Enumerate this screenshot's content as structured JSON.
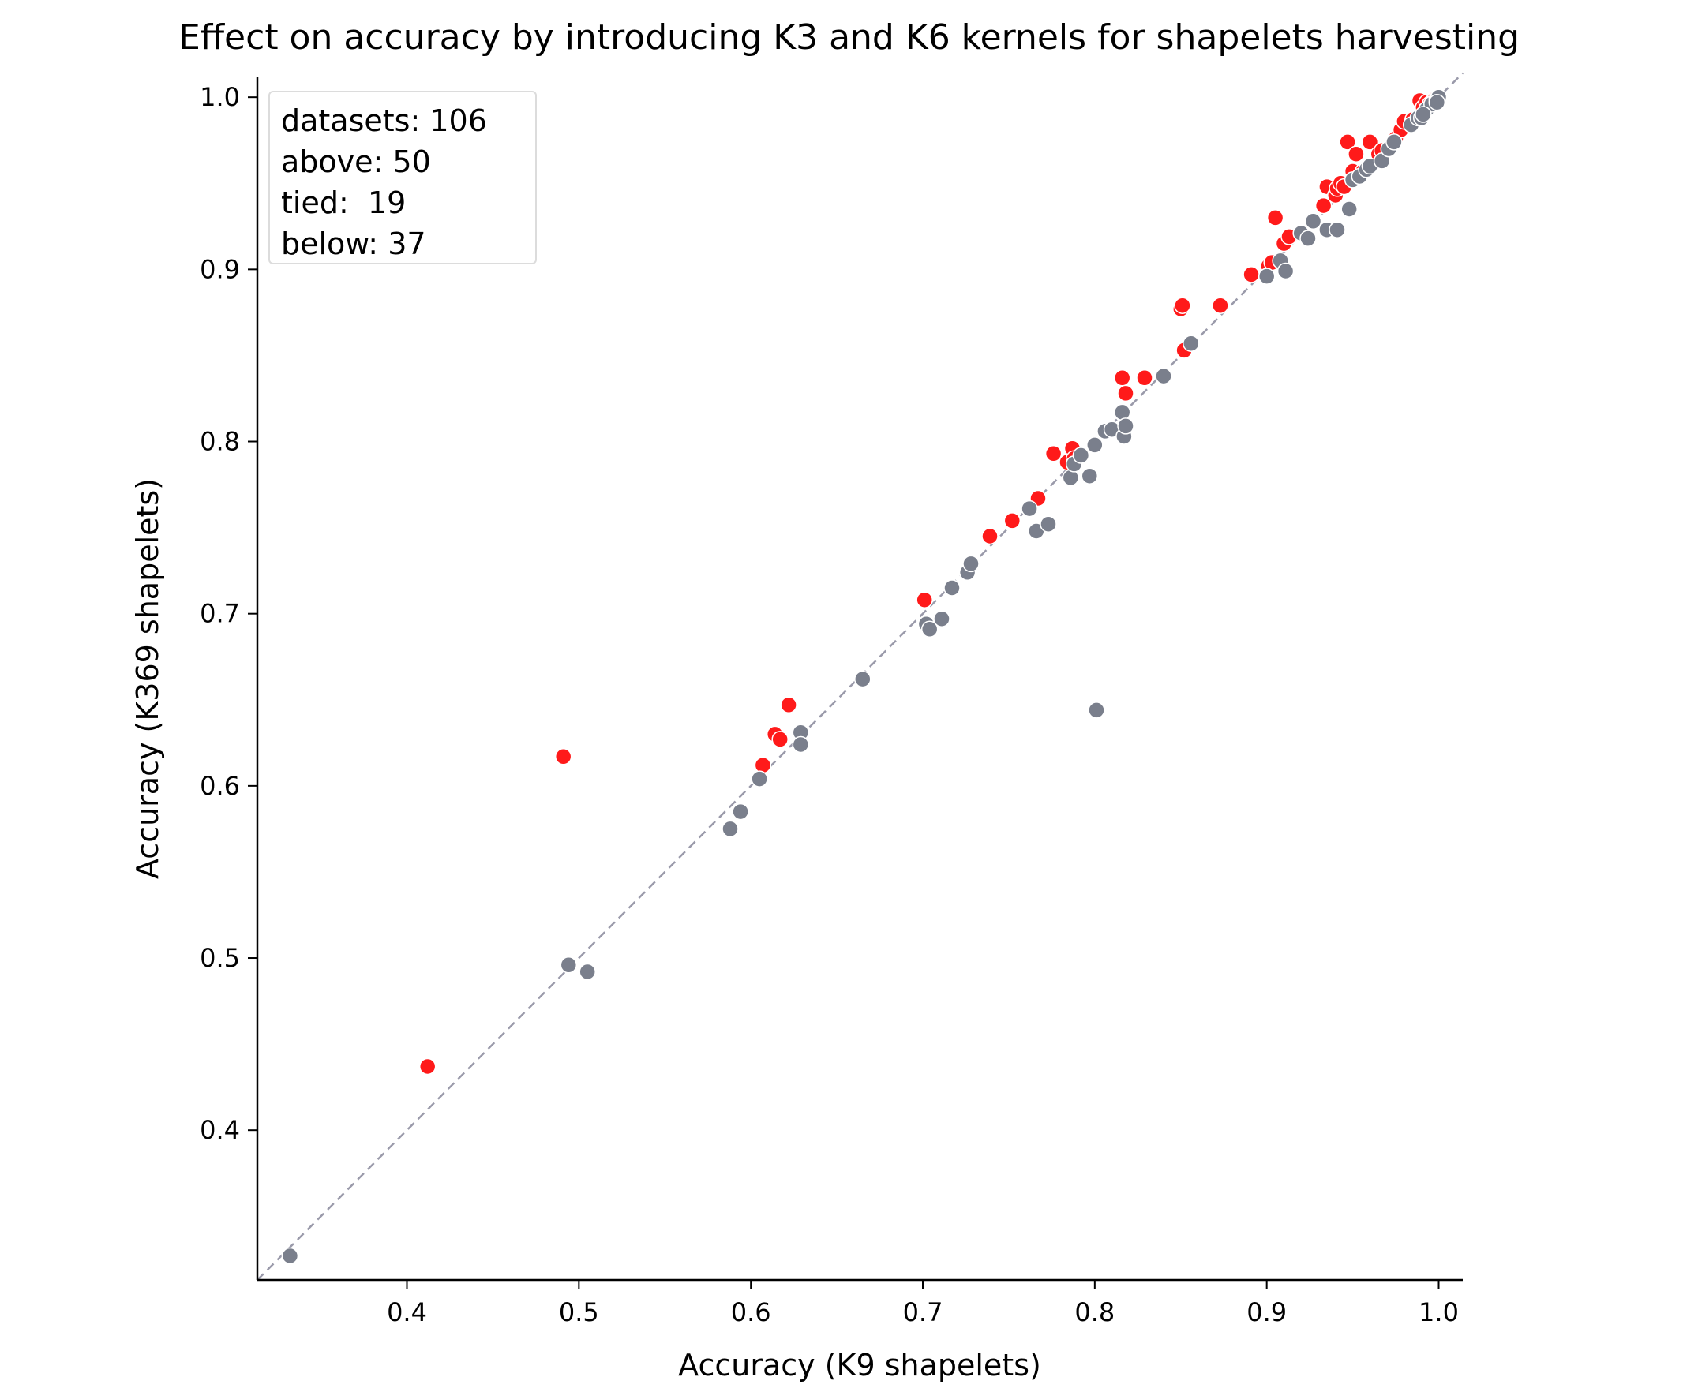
{
  "chart_data": {
    "type": "scatter",
    "title": "Effect on accuracy by introducing K3 and K6 kernels for shapelets harvesting",
    "xlabel": "Accuracy (K9 shapelets)",
    "ylabel": "Accuracy (K369 shapelets)",
    "xlim": [
      0.313,
      1.014
    ],
    "ylim": [
      0.313,
      1.012
    ],
    "xticks": [
      0.4,
      0.5,
      0.6,
      0.7,
      0.8,
      0.9,
      1.0
    ],
    "yticks": [
      0.4,
      0.5,
      0.6,
      0.7,
      0.8,
      0.9,
      1.0
    ],
    "xtick_labels": [
      "0.4",
      "0.5",
      "0.6",
      "0.7",
      "0.8",
      "0.9",
      "1.0"
    ],
    "ytick_labels": [
      "0.4",
      "0.5",
      "0.6",
      "0.7",
      "0.8",
      "0.9",
      "1.0"
    ],
    "grid": false,
    "diagonal": {
      "from": [
        0.313,
        0.313
      ],
      "to": [
        1.014,
        1.014
      ],
      "style": "dashed",
      "color": "#9a9aaa"
    },
    "colors": {
      "above": "#ff1a1a",
      "not_above": "#7a7f8c"
    },
    "stats": {
      "datasets": "datasets: 106",
      "above": "above: 50",
      "tied": "tied:  19",
      "below": "below: 37"
    },
    "series": [
      {
        "group": "above",
        "points": [
          [
            0.412,
            0.437
          ],
          [
            0.491,
            0.617
          ],
          [
            0.607,
            0.612
          ],
          [
            0.614,
            0.63
          ],
          [
            0.617,
            0.627
          ],
          [
            0.622,
            0.647
          ],
          [
            0.701,
            0.708
          ],
          [
            0.739,
            0.745
          ],
          [
            0.752,
            0.754
          ],
          [
            0.767,
            0.767
          ],
          [
            0.776,
            0.793
          ],
          [
            0.784,
            0.788
          ],
          [
            0.787,
            0.796
          ],
          [
            0.788,
            0.79
          ],
          [
            0.816,
            0.837
          ],
          [
            0.818,
            0.828
          ],
          [
            0.829,
            0.837
          ],
          [
            0.85,
            0.877
          ],
          [
            0.851,
            0.879
          ],
          [
            0.852,
            0.853
          ],
          [
            0.873,
            0.879
          ],
          [
            0.891,
            0.897
          ],
          [
            0.901,
            0.902
          ],
          [
            0.903,
            0.904
          ],
          [
            0.905,
            0.93
          ],
          [
            0.91,
            0.915
          ],
          [
            0.913,
            0.919
          ],
          [
            0.933,
            0.937
          ],
          [
            0.935,
            0.948
          ],
          [
            0.94,
            0.943
          ],
          [
            0.941,
            0.947
          ],
          [
            0.943,
            0.95
          ],
          [
            0.945,
            0.948
          ],
          [
            0.947,
            0.974
          ],
          [
            0.95,
            0.957
          ],
          [
            0.952,
            0.967
          ],
          [
            0.956,
            0.957
          ],
          [
            0.96,
            0.974
          ],
          [
            0.965,
            0.967
          ],
          [
            0.967,
            0.969
          ],
          [
            0.975,
            0.976
          ],
          [
            0.978,
            0.981
          ],
          [
            0.98,
            0.986
          ],
          [
            0.985,
            0.987
          ],
          [
            0.989,
            0.998
          ],
          [
            0.991,
            0.994
          ],
          [
            0.993,
            0.997
          ],
          [
            0.995,
            0.996
          ],
          [
            0.997,
            0.998
          ],
          [
            0.998,
            0.999
          ]
        ]
      },
      {
        "group": "not_above",
        "points": [
          [
            0.332,
            0.327
          ],
          [
            0.494,
            0.496
          ],
          [
            0.505,
            0.492
          ],
          [
            0.588,
            0.575
          ],
          [
            0.594,
            0.585
          ],
          [
            0.605,
            0.604
          ],
          [
            0.629,
            0.631
          ],
          [
            0.629,
            0.624
          ],
          [
            0.665,
            0.662
          ],
          [
            0.702,
            0.694
          ],
          [
            0.704,
            0.691
          ],
          [
            0.711,
            0.697
          ],
          [
            0.717,
            0.715
          ],
          [
            0.726,
            0.724
          ],
          [
            0.728,
            0.729
          ],
          [
            0.762,
            0.761
          ],
          [
            0.766,
            0.748
          ],
          [
            0.773,
            0.752
          ],
          [
            0.786,
            0.779
          ],
          [
            0.788,
            0.787
          ],
          [
            0.792,
            0.792
          ],
          [
            0.797,
            0.78
          ],
          [
            0.8,
            0.798
          ],
          [
            0.801,
            0.644
          ],
          [
            0.806,
            0.806
          ],
          [
            0.81,
            0.807
          ],
          [
            0.816,
            0.817
          ],
          [
            0.817,
            0.803
          ],
          [
            0.818,
            0.809
          ],
          [
            0.84,
            0.838
          ],
          [
            0.856,
            0.857
          ],
          [
            0.9,
            0.896
          ],
          [
            0.908,
            0.905
          ],
          [
            0.911,
            0.899
          ],
          [
            0.92,
            0.921
          ],
          [
            0.924,
            0.918
          ],
          [
            0.927,
            0.928
          ],
          [
            0.935,
            0.923
          ],
          [
            0.941,
            0.923
          ],
          [
            0.948,
            0.935
          ],
          [
            0.95,
            0.952
          ],
          [
            0.954,
            0.954
          ],
          [
            0.958,
            0.958
          ],
          [
            0.96,
            0.96
          ],
          [
            0.967,
            0.963
          ],
          [
            0.971,
            0.97
          ],
          [
            0.974,
            0.974
          ],
          [
            0.984,
            0.984
          ],
          [
            0.988,
            0.988
          ],
          [
            0.99,
            0.988
          ],
          [
            0.993,
            0.993
          ],
          [
            0.996,
            0.996
          ],
          [
            0.999,
            0.999
          ],
          [
            1.0,
            1.0
          ],
          [
            0.999,
            0.997
          ],
          [
            0.991,
            0.99
          ]
        ]
      }
    ]
  }
}
